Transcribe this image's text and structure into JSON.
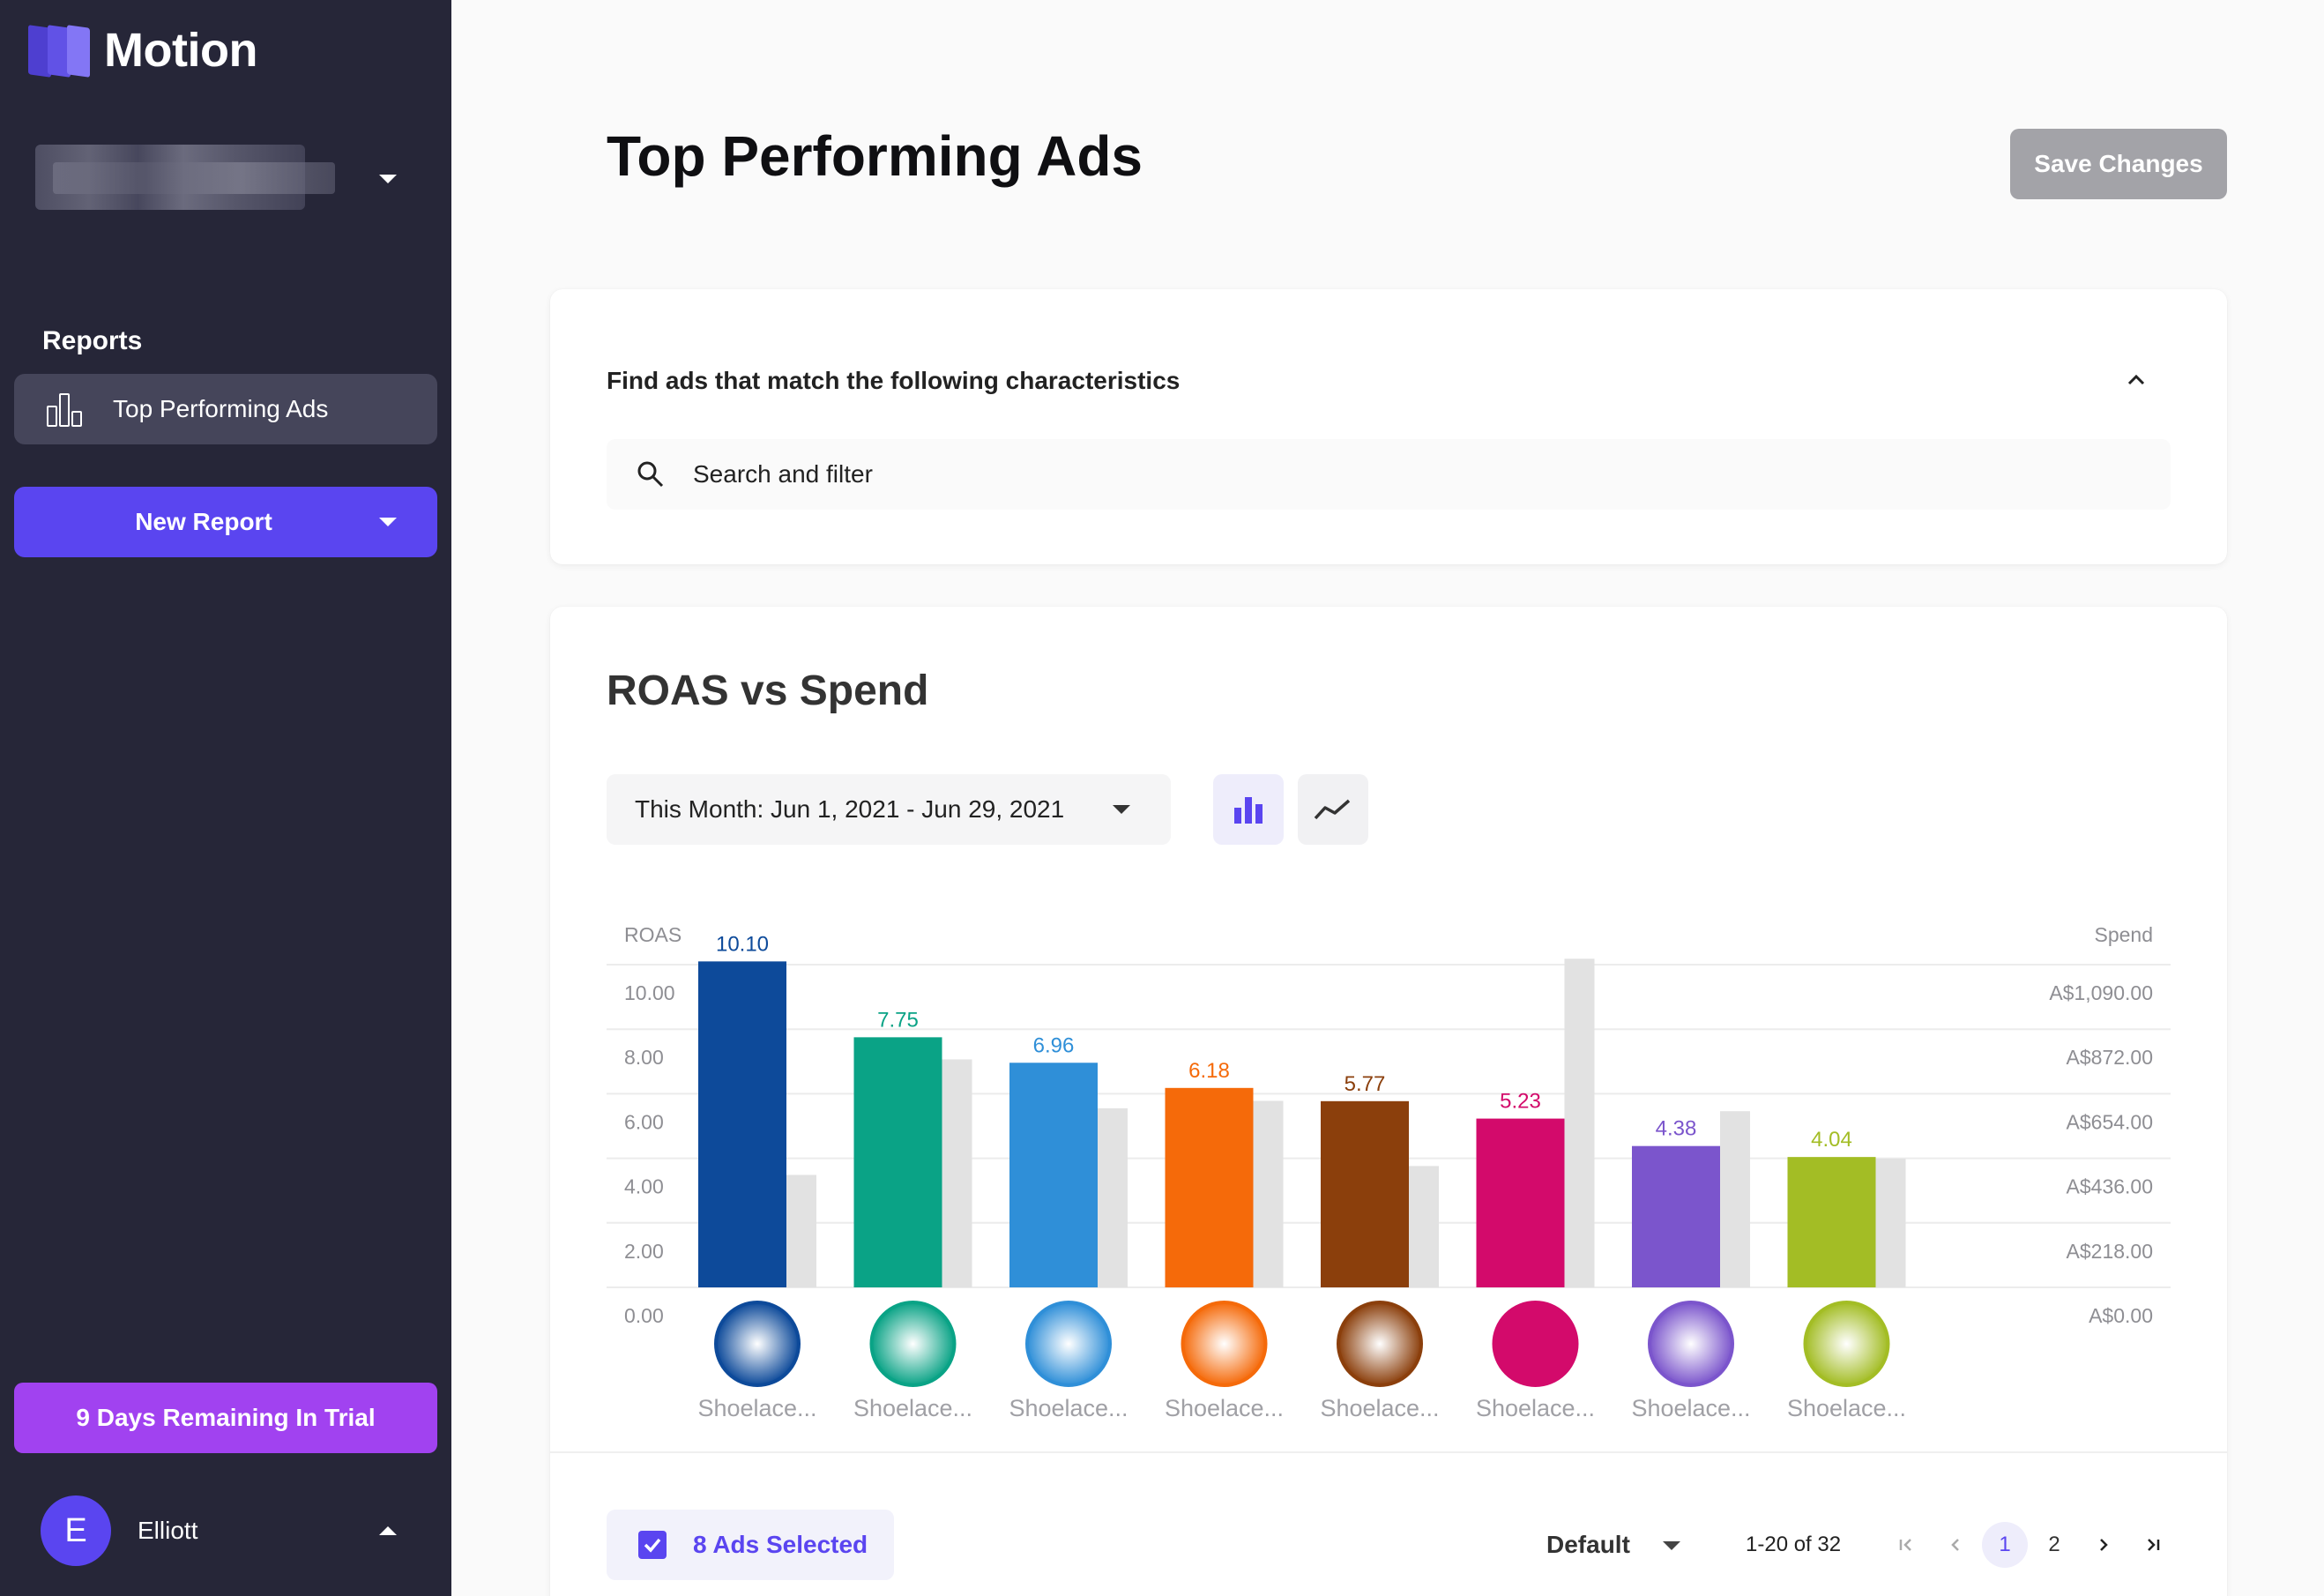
{
  "app": {
    "name": "Motion"
  },
  "sidebar": {
    "reports_heading": "Reports",
    "nav_items": [
      {
        "label": "Top Performing Ads",
        "icon": "report-chart-icon"
      }
    ],
    "new_report_label": "New Report",
    "trial_label": "9 Days Remaining In Trial",
    "user": {
      "initial": "E",
      "name": "Elliott"
    }
  },
  "header": {
    "title": "Top Performing Ads",
    "save_label": "Save Changes"
  },
  "filter": {
    "title": "Find ads that match the following characteristics",
    "search_placeholder": "Search and filter"
  },
  "chart_section": {
    "title": "ROAS vs Spend",
    "date_range": "This Month: Jun 1, 2021 - Jun 29, 2021"
  },
  "chart_data": {
    "type": "bar",
    "ylabel_left": "ROAS",
    "ylabel_right": "Spend",
    "left_ticks": [
      "10.00",
      "8.00",
      "6.00",
      "4.00",
      "2.00",
      "0.00"
    ],
    "right_ticks": [
      "A$1,090.00",
      "A$872.00",
      "A$654.00",
      "A$436.00",
      "A$218.00",
      "A$0.00"
    ],
    "left_ylim": [
      0,
      10
    ],
    "right_ylim": [
      0,
      1090
    ],
    "categories": [
      "Shoelace...",
      "Shoelace...",
      "Shoelace...",
      "Shoelace...",
      "Shoelace...",
      "Shoelace...",
      "Shoelace...",
      "Shoelace..."
    ],
    "series": [
      {
        "name": "ROAS",
        "values": [
          10.1,
          7.75,
          6.96,
          6.18,
          5.77,
          5.23,
          4.38,
          4.04
        ],
        "labels": [
          "10.10",
          "7.75",
          "6.96",
          "6.18",
          "5.77",
          "5.23",
          "4.38",
          "4.04"
        ],
        "colors": [
          "#0d4a9a",
          "#0aa386",
          "#2f8fd8",
          "#f56a0a",
          "#8b3f0c",
          "#d30a6b",
          "#7b55cc",
          "#a3bd25"
        ]
      },
      {
        "name": "Spend",
        "values": [
          380,
          770,
          605,
          630,
          410,
          1110,
          595,
          435
        ],
        "color": "#e2e2e2"
      }
    ]
  },
  "table_footer": {
    "selected_label": "8 Ads Selected",
    "sort_label": "Default",
    "range_text": "1-20 of 32",
    "pages": [
      "1",
      "2"
    ]
  }
}
